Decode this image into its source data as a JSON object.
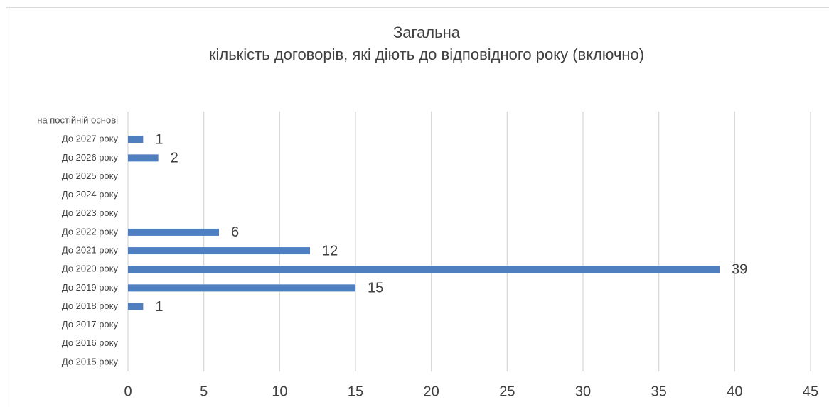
{
  "chart_data": {
    "type": "bar",
    "orientation": "horizontal",
    "title": [
      "Загальна",
      "кількість договорів, які діють до відповідного року (включно)"
    ],
    "categories": [
      "на постійній основі",
      "До 2027 року",
      "До 2026 року",
      "До 2025 року",
      "До 2024 року",
      "До 2023 року",
      "До 2022 року",
      "До 2021 року",
      "До 2020 року",
      "До 2019 року",
      "До 2018 року",
      "До 2017 року",
      "До 2016 року",
      "До 2015 року"
    ],
    "values": [
      null,
      1,
      2,
      null,
      null,
      null,
      6,
      12,
      39,
      15,
      1,
      null,
      null,
      null
    ],
    "color": "#4f7fbf",
    "xlim": [
      0,
      45
    ],
    "xticks": [
      0,
      5,
      10,
      15,
      20,
      25,
      30,
      35,
      40,
      45
    ],
    "grid": true
  }
}
